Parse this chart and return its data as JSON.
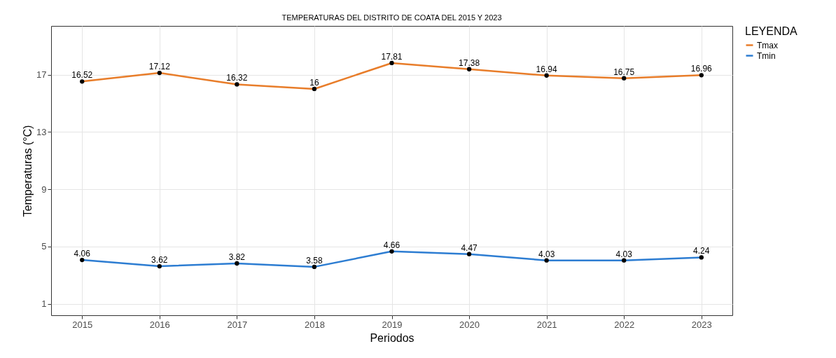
{
  "chart_data": {
    "type": "line",
    "title": "TEMPERATURAS DEL DISTRITO DE COATA DEL 2015 Y 2023",
    "xlabel": "Periodos",
    "ylabel": "Temperaturas (°C)",
    "legend_title": "LEYENDA",
    "x": [
      2015,
      2016,
      2017,
      2018,
      2019,
      2020,
      2021,
      2022,
      2023
    ],
    "series": [
      {
        "name": "Tmax",
        "color": "#e87d2a",
        "values": [
          16.52,
          17.12,
          16.32,
          16,
          17.81,
          17.38,
          16.94,
          16.75,
          16.96
        ]
      },
      {
        "name": "Tmin",
        "color": "#2d7dd2",
        "values": [
          4.06,
          3.62,
          3.82,
          3.58,
          4.66,
          4.47,
          4.03,
          4.03,
          4.24
        ]
      }
    ],
    "xlim": [
      2014.6,
      2023.4
    ],
    "xticks": [
      2015,
      2016,
      2017,
      2018,
      2019,
      2020,
      2021,
      2022,
      2023
    ],
    "ylim": [
      0.2,
      20.4
    ],
    "yticks": [
      1,
      5,
      9,
      13,
      17
    ],
    "grid": true,
    "legend": "right",
    "marker": "circle",
    "line_style": "solid",
    "data_labels": true
  }
}
